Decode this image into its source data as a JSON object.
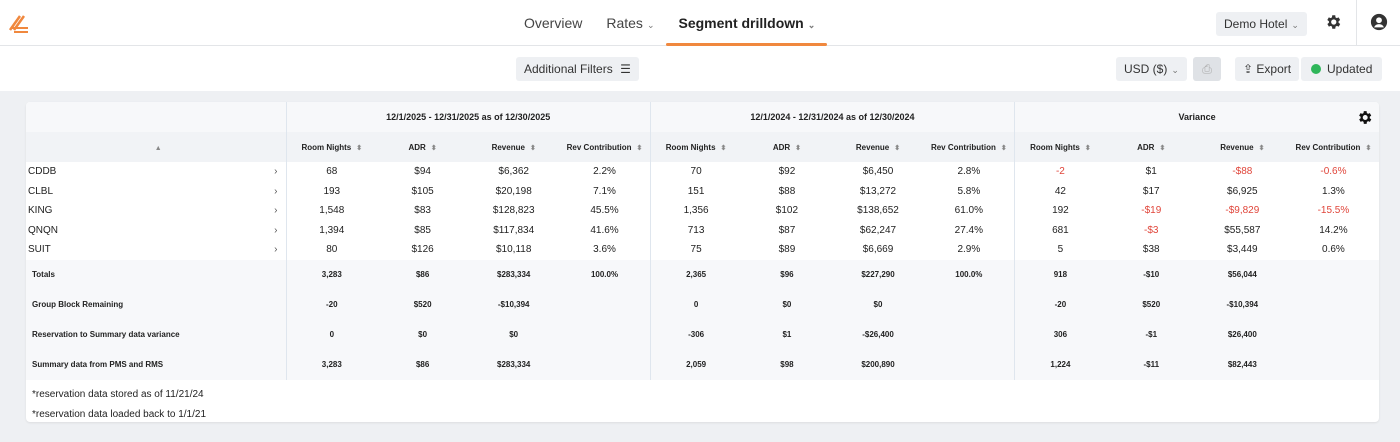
{
  "nav": {
    "items": [
      {
        "label": "Overview"
      },
      {
        "label": "Rates"
      },
      {
        "label": "Segment drilldown"
      }
    ],
    "hotel": "Demo Hotel"
  },
  "toolbar": {
    "filters": "Additional Filters",
    "currency": "USD ($)",
    "export": "Export",
    "status": "Updated",
    "status_color": "#2fb65a"
  },
  "table": {
    "groups": [
      "12/1/2025 - 12/31/2025 as of 12/30/2025",
      "12/1/2024 - 12/31/2024 as of 12/30/2024",
      "Variance"
    ],
    "columns": [
      "Room Nights",
      "ADR",
      "Revenue",
      "Rev Contribution"
    ],
    "rows": [
      {
        "name": "CDDB",
        "v": [
          "68",
          "$94",
          "$6,362",
          "2.2%",
          "70",
          "$92",
          "$6,450",
          "2.8%",
          "-2",
          "$1",
          "-$88",
          "-0.6%"
        ]
      },
      {
        "name": "CLBL",
        "v": [
          "193",
          "$105",
          "$20,198",
          "7.1%",
          "151",
          "$88",
          "$13,272",
          "5.8%",
          "42",
          "$17",
          "$6,925",
          "1.3%"
        ]
      },
      {
        "name": "KING",
        "v": [
          "1,548",
          "$83",
          "$128,823",
          "45.5%",
          "1,356",
          "$102",
          "$138,652",
          "61.0%",
          "192",
          "-$19",
          "-$9,829",
          "-15.5%"
        ]
      },
      {
        "name": "QNQN",
        "v": [
          "1,394",
          "$85",
          "$117,834",
          "41.6%",
          "713",
          "$87",
          "$62,247",
          "27.4%",
          "681",
          "-$3",
          "$55,587",
          "14.2%"
        ]
      },
      {
        "name": "SUIT",
        "v": [
          "80",
          "$126",
          "$10,118",
          "3.6%",
          "75",
          "$89",
          "$6,669",
          "2.9%",
          "5",
          "$38",
          "$3,449",
          "0.6%"
        ]
      }
    ],
    "summary": [
      {
        "name": "Totals",
        "v": [
          "3,283",
          "$86",
          "$283,334",
          "100.0%",
          "2,365",
          "$96",
          "$227,290",
          "100.0%",
          "918",
          "-$10",
          "$56,044",
          ""
        ]
      },
      {
        "name": "Group Block Remaining",
        "v": [
          "-20",
          "$520",
          "-$10,394",
          "",
          "0",
          "$0",
          "$0",
          "",
          "-20",
          "$520",
          "-$10,394",
          ""
        ]
      },
      {
        "name": "Reservation to Summary data variance",
        "v": [
          "0",
          "$0",
          "$0",
          "",
          "-306",
          "$1",
          "-$26,400",
          "",
          "306",
          "-$1",
          "$26,400",
          ""
        ]
      },
      {
        "name": "Summary data from PMS and RMS",
        "v": [
          "3,283",
          "$86",
          "$283,334",
          "",
          "2,059",
          "$98",
          "$200,890",
          "",
          "1,224",
          "-$11",
          "$82,443",
          ""
        ]
      }
    ],
    "footnotes": [
      "*reservation data stored as of 11/21/24",
      "*reservation data loaded back to 1/1/21"
    ]
  }
}
